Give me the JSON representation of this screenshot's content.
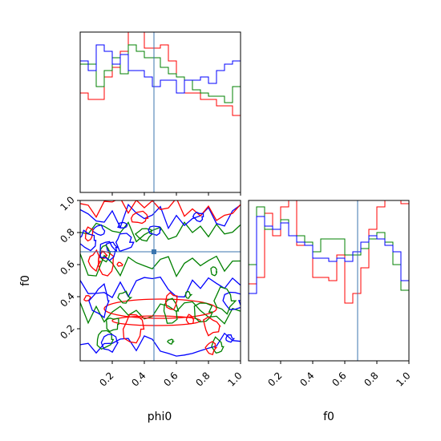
{
  "chart_data": [
    {
      "type": "histogram",
      "panel": "phi0-marginal",
      "xlim": [
        0,
        1
      ],
      "truth": 0.46,
      "bins": 20,
      "series": [
        {
          "color": "#ff0000",
          "values": [
            0.62,
            0.58,
            0.58,
            0.72,
            0.78,
            0.88,
            1.08,
            1.08,
            0.9,
            0.9,
            0.92,
            0.82,
            0.72,
            0.62,
            0.62,
            0.58,
            0.58,
            0.54,
            0.54,
            0.48
          ]
        },
        {
          "color": "#008000",
          "values": [
            0.8,
            0.8,
            0.66,
            0.76,
            0.84,
            0.74,
            0.92,
            0.88,
            0.84,
            0.84,
            0.78,
            0.74,
            0.72,
            0.7,
            0.64,
            0.62,
            0.6,
            0.6,
            0.56,
            0.66
          ]
        },
        {
          "color": "#0000ff",
          "values": [
            0.82,
            0.76,
            0.92,
            0.88,
            0.8,
            0.86,
            0.76,
            0.76,
            0.72,
            0.66,
            0.7,
            0.7,
            0.62,
            0.7,
            0.7,
            0.72,
            0.68,
            0.76,
            0.8,
            0.82
          ]
        }
      ],
      "xticks": [],
      "yticks": []
    },
    {
      "type": "contour",
      "panel": "phi0-f0-joint",
      "xlabel": "phi0",
      "ylabel": "f0",
      "xlim": [
        0,
        1
      ],
      "ylim": [
        0,
        1
      ],
      "truth": {
        "x": 0.46,
        "y": 0.68
      },
      "xticks": [
        "0.2",
        "0.4",
        "0.6",
        "0.8",
        "1.0"
      ],
      "yticks": [
        "0.2",
        "0.4",
        "0.6",
        "0.8",
        "1.0"
      ],
      "series_colors": [
        "#ff0000",
        "#008000",
        "#0000ff"
      ]
    },
    {
      "type": "histogram",
      "panel": "f0-marginal",
      "xlabel": "f0",
      "xlim": [
        0,
        1
      ],
      "truth": 0.68,
      "bins": 20,
      "series": [
        {
          "color": "#ff0000",
          "values": [
            0.48,
            0.52,
            0.92,
            0.78,
            0.96,
            1.08,
            0.72,
            0.72,
            0.52,
            0.52,
            0.5,
            0.66,
            0.36,
            0.42,
            0.58,
            0.82,
            0.96,
            1.08,
            1.0,
            0.98
          ]
        },
        {
          "color": "#008000",
          "values": [
            0.6,
            0.96,
            0.82,
            0.82,
            0.88,
            0.78,
            0.78,
            0.74,
            0.68,
            0.76,
            0.76,
            0.76,
            0.66,
            0.66,
            0.7,
            0.76,
            0.8,
            0.74,
            0.6,
            0.44
          ]
        },
        {
          "color": "#0000ff",
          "values": [
            0.42,
            0.9,
            0.84,
            0.82,
            0.86,
            0.78,
            0.74,
            0.72,
            0.64,
            0.64,
            0.62,
            0.64,
            0.62,
            0.68,
            0.74,
            0.78,
            0.76,
            0.72,
            0.68,
            0.5
          ]
        }
      ],
      "xticks": [
        "0.2",
        "0.4",
        "0.6",
        "0.8",
        "1.0"
      ],
      "yticks": []
    }
  ],
  "labels": {
    "phi0_x": "phi0",
    "f0_y": "f0",
    "f0_x": "f0"
  }
}
